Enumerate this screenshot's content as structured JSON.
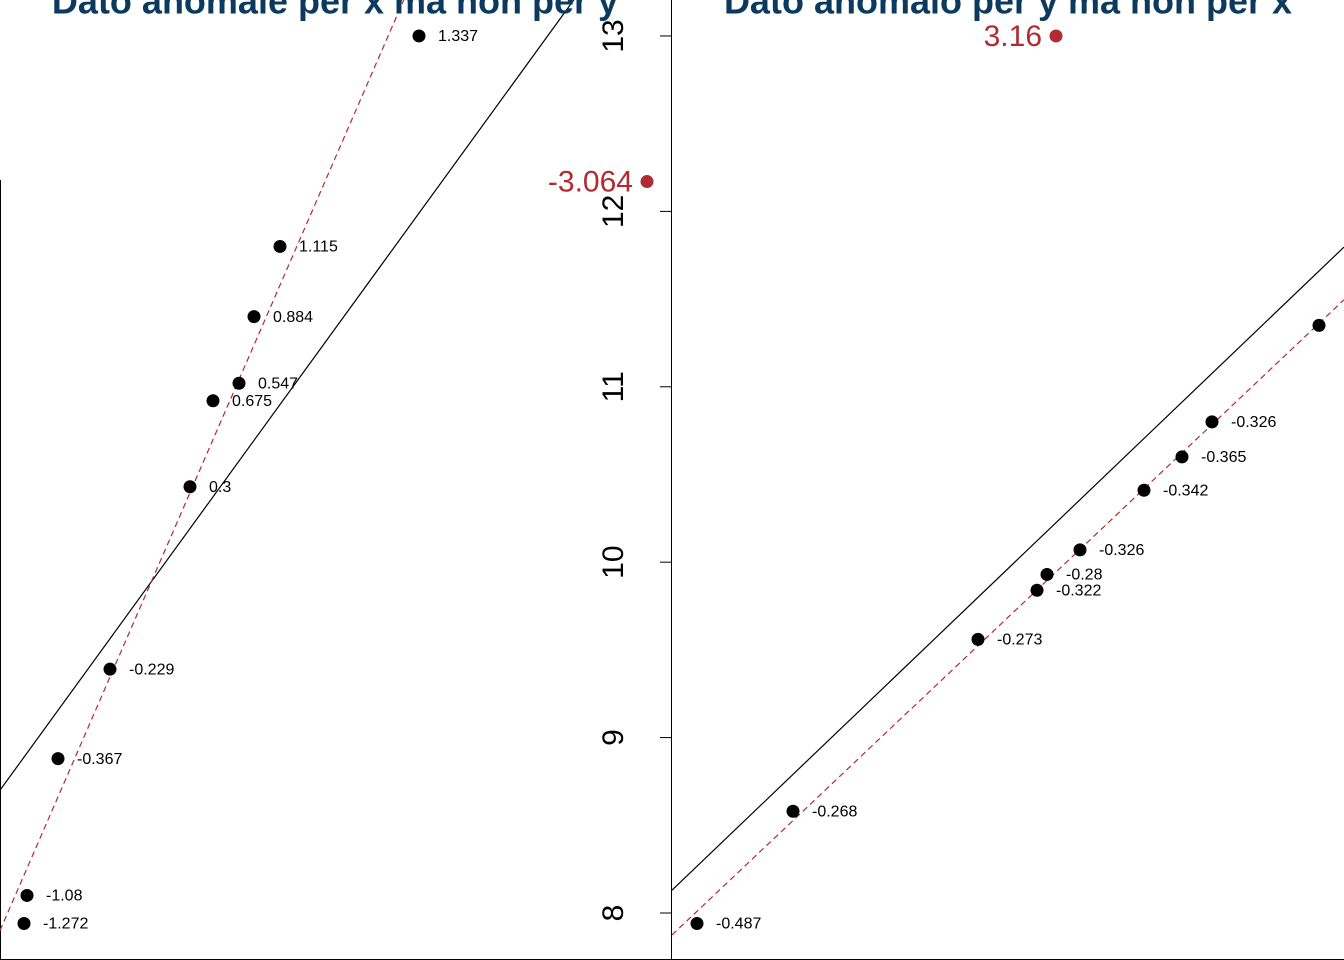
{
  "chart_data": [
    {
      "type": "scatter",
      "title": "Dato anomale per x ma non per y",
      "xlim": [
        0,
        13.4
      ],
      "ylim": [
        7.732,
        13.205
      ],
      "color": "#000000",
      "x": [
        8.38,
        5.6,
        5.08,
        4.78,
        4.26,
        3.8,
        2.2,
        1.16,
        0.54,
        0.48
      ],
      "values": [
        13.0,
        11.8,
        11.4,
        11.02,
        10.92,
        10.43,
        9.39,
        8.88,
        8.1,
        7.94
      ],
      "labels": [
        1.337,
        1.115,
        0.884,
        0.547,
        0.675,
        0.3,
        -0.229,
        -0.367,
        -1.08,
        -1.272
      ],
      "outlier": {
        "x": 12.94,
        "y": 12.17,
        "label": -3.064,
        "color": "#b22b33"
      },
      "lines": [
        {
          "intercept": 8.7,
          "slope": 0.3926,
          "color": "#000000",
          "dashed": false
        },
        {
          "intercept": 7.9,
          "slope": 0.657,
          "color": "#b22b33",
          "dashed": true
        }
      ]
    },
    {
      "type": "scatter",
      "title": "Dato anomalo per y ma non per x",
      "xlim": [
        0,
        13.44
      ],
      "ylim": [
        7.732,
        13.205
      ],
      "yticks": [
        8,
        9,
        10,
        11,
        12,
        13
      ],
      "color": "#000000",
      "x": [
        0.5,
        2.42,
        6.12,
        7.3,
        7.5,
        8.16,
        9.44,
        10.2,
        10.8,
        12.94
      ],
      "values": [
        7.94,
        8.58,
        9.56,
        9.84,
        9.93,
        10.07,
        10.41,
        10.6,
        10.8,
        11.35
      ],
      "labels": [
        -0.487,
        -0.268,
        -0.273,
        -0.322,
        -0.28,
        -0.326,
        -0.342,
        -0.365,
        -0.326,
        null
      ],
      "outlier": {
        "x": 7.68,
        "y": 13.0,
        "label": 3.16,
        "color": "#b22b33"
      },
      "lines": [
        {
          "intercept": 8.13,
          "slope": 0.2728,
          "color": "#000000",
          "dashed": false
        },
        {
          "intercept": 7.875,
          "slope": 0.2694,
          "color": "#b22b33",
          "dashed": true
        }
      ]
    }
  ]
}
